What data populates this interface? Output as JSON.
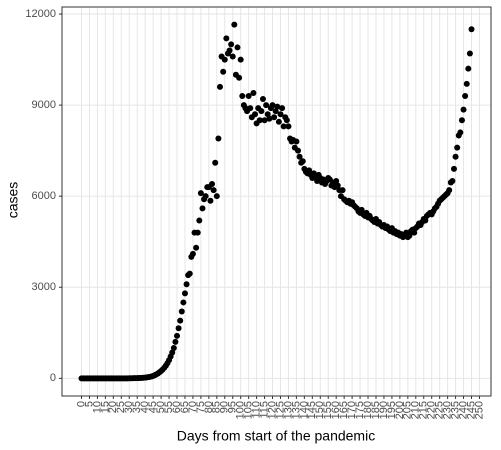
{
  "chart_data": {
    "type": "scatter",
    "x_label": "Days from start of the pandemic",
    "y_label": "cases",
    "color": "#000000",
    "grid": true,
    "xlim": [
      -12.25,
      257.25
    ],
    "ylim": [
      -582,
      12232
    ],
    "yticks": [
      0,
      3000,
      6000,
      9000,
      12000
    ],
    "xticks": [
      0,
      5,
      10,
      15,
      20,
      25,
      30,
      35,
      40,
      45,
      50,
      55,
      60,
      65,
      70,
      75,
      80,
      85,
      90,
      95,
      100,
      105,
      110,
      115,
      120,
      125,
      130,
      135,
      140,
      145,
      150,
      155,
      160,
      165,
      170,
      175,
      180,
      185,
      190,
      195,
      200,
      205,
      210,
      215,
      220,
      225,
      230,
      235,
      240,
      245,
      250
    ],
    "x": [
      0,
      1,
      2,
      3,
      4,
      5,
      6,
      7,
      8,
      9,
      10,
      11,
      12,
      13,
      14,
      15,
      16,
      17,
      18,
      19,
      20,
      21,
      22,
      23,
      24,
      25,
      26,
      27,
      28,
      29,
      30,
      31,
      32,
      33,
      34,
      35,
      36,
      37,
      38,
      39,
      40,
      41,
      42,
      43,
      44,
      45,
      46,
      47,
      48,
      49,
      50,
      51,
      52,
      53,
      54,
      55,
      56,
      57,
      58,
      59,
      60,
      61,
      62,
      63,
      64,
      65,
      66,
      67,
      68,
      69,
      70,
      71,
      72,
      73,
      74,
      75,
      76,
      77,
      78,
      79,
      80,
      81,
      82,
      83,
      84,
      85,
      86,
      87,
      88,
      89,
      90,
      91,
      92,
      93,
      94,
      95,
      96,
      97,
      98,
      99,
      100,
      101,
      102,
      103,
      104,
      105,
      106,
      107,
      108,
      109,
      110,
      111,
      112,
      113,
      114,
      115,
      116,
      117,
      118,
      119,
      120,
      121,
      122,
      123,
      124,
      125,
      126,
      127,
      128,
      129,
      130,
      131,
      132,
      133,
      134,
      135,
      136,
      137,
      138,
      139,
      140,
      141,
      142,
      143,
      144,
      145,
      146,
      147,
      148,
      149,
      150,
      151,
      152,
      153,
      154,
      155,
      156,
      157,
      158,
      159,
      160,
      161,
      162,
      163,
      164,
      165,
      166,
      167,
      168,
      169,
      170,
      171,
      172,
      173,
      174,
      175,
      176,
      177,
      178,
      179,
      180,
      181,
      182,
      183,
      184,
      185,
      186,
      187,
      188,
      189,
      190,
      191,
      192,
      193,
      194,
      195,
      196,
      197,
      198,
      199,
      200,
      201,
      202,
      203,
      204,
      205,
      206,
      207,
      208,
      209,
      210,
      211,
      212,
      213,
      214,
      215,
      216,
      217,
      218,
      219,
      220,
      221,
      222,
      223,
      224,
      225,
      226,
      227,
      228,
      229,
      230,
      231,
      232,
      233,
      234,
      235,
      236,
      237,
      238,
      239,
      240,
      241,
      242,
      243,
      244,
      245
    ],
    "values": [
      0,
      0,
      0,
      0,
      0,
      0,
      0,
      0,
      0,
      0,
      0,
      0,
      0,
      0,
      0,
      0,
      0,
      0,
      0,
      0,
      0,
      0,
      0,
      0,
      0,
      0,
      0,
      0,
      0,
      0,
      1,
      2,
      3,
      5,
      5,
      8,
      10,
      12,
      15,
      20,
      25,
      30,
      40,
      50,
      60,
      80,
      100,
      130,
      160,
      200,
      240,
      290,
      350,
      420,
      500,
      600,
      720,
      850,
      1000,
      1200,
      1400,
      1650,
      1900,
      2200,
      2500,
      2800,
      3100,
      3400,
      3450,
      4000,
      4100,
      4800,
      4300,
      4800,
      5200,
      6100,
      5600,
      5900,
      6000,
      6300,
      6300,
      5850,
      6400,
      6200,
      7100,
      6000,
      7900,
      9600,
      10600,
      10100,
      10500,
      11200,
      10700,
      10800,
      11000,
      10600,
      11650,
      10000,
      10900,
      9900,
      10500,
      9300,
      9000,
      8900,
      8800,
      9300,
      8900,
      8600,
      9400,
      8700,
      8400,
      8900,
      8500,
      8800,
      9200,
      8500,
      9000,
      8700,
      8550,
      8900,
      9000,
      8600,
      8800,
      8950,
      8450,
      8700,
      8900,
      8300,
      8600,
      8500,
      8300,
      7900,
      7800,
      7850,
      7600,
      7800,
      7500,
      7300,
      7100,
      7150,
      6900,
      6800,
      6750,
      6850,
      6700,
      6600,
      6750,
      6650,
      6500,
      6700,
      6600,
      6450,
      6550,
      6400,
      6500,
      6600,
      6550,
      6350,
      6450,
      6300,
      6500,
      6350,
      6200,
      6000,
      6200,
      5900,
      5850,
      5800,
      5850,
      5750,
      5800,
      5700,
      5650,
      5600,
      5500,
      5450,
      5550,
      5400,
      5350,
      5450,
      5300,
      5350,
      5250,
      5200,
      5150,
      5250,
      5100,
      5150,
      5050,
      5000,
      5050,
      4950,
      5000,
      4900,
      4850,
      4950,
      4800,
      4850,
      4750,
      4800,
      4700,
      4750,
      4650,
      4700,
      4800,
      4650,
      4700,
      4850,
      4900,
      4800,
      4950,
      5000,
      5100,
      5050,
      5150,
      5250,
      5200,
      5350,
      5400,
      5450,
      5400,
      5500,
      5600,
      5650,
      5750,
      5850,
      5900,
      5950,
      6000,
      6050,
      6100,
      6200,
      6450,
      6500,
      6900,
      7300,
      7600,
      8000,
      8100,
      8500,
      8850,
      9300,
      9700,
      10200,
      10700,
      11500
    ]
  }
}
